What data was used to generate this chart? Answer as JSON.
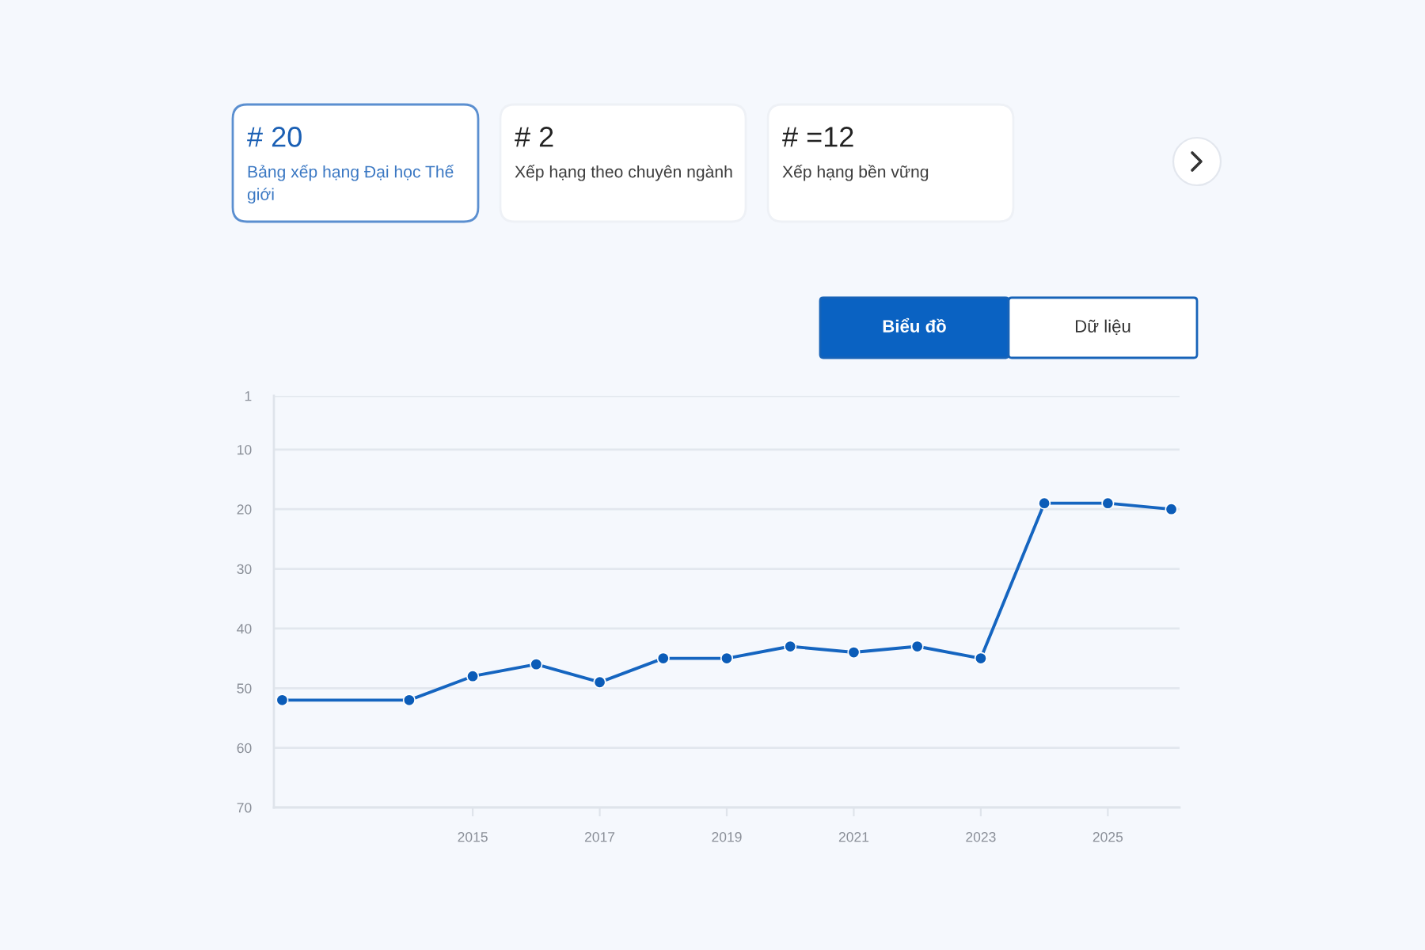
{
  "chart_data": [
    {
      "type": "other",
      "annotations": [
        "# 20",
        "Bảng xếp hạng Đại học Thế giới",
        "# 2",
        "Xếp hạng theo chuyên ngành",
        "# =12",
        "Xếp hạng bền vững"
      ]
    },
    {
      "type": "line",
      "x": [
        2012,
        2014,
        2015,
        2016,
        2017,
        2018,
        2019,
        2020,
        2021,
        2022,
        2023,
        2024,
        2025,
        2026
      ],
      "series": [
        {
          "color": "#1565c0",
          "values": [
            52,
            52,
            48,
            46,
            49,
            45,
            45,
            43,
            44,
            43,
            45,
            19,
            19,
            20
          ]
        }
      ],
      "xlim": [
        2011.87,
        2026.13
      ],
      "xticks": [
        2015,
        2017,
        2019,
        2021,
        2023,
        2025
      ],
      "ylim": [
        70,
        1
      ],
      "yticks": [
        1,
        10,
        20,
        30,
        40,
        50,
        60,
        70
      ],
      "grid": "y",
      "marker": "circle",
      "line_style": "solid",
      "annotations": [
        "Biểu đồ",
        "Dữ liệu"
      ]
    }
  ]
}
